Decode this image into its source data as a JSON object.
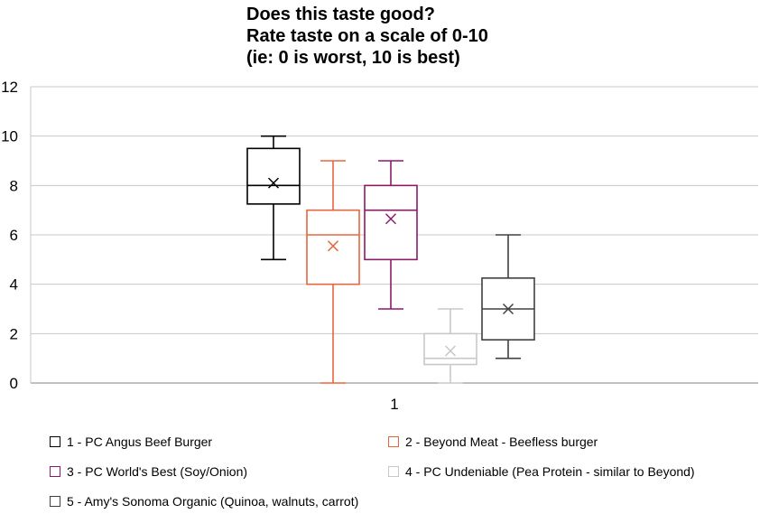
{
  "chart_data": {
    "type": "boxplot",
    "title_lines": [
      "Does this taste good?",
      "Rate taste on a scale of 0-10",
      "(ie: 0 is worst, 10 is best)"
    ],
    "category_label": "1",
    "ylim": [
      0,
      12
    ],
    "yticks": [
      "0",
      "2",
      "4",
      "6",
      "8",
      "10",
      "12"
    ],
    "grid": true,
    "series": [
      {
        "name": "1 - PC Angus Beef Burger",
        "color": "#000000",
        "min": 5,
        "q1": 7.25,
        "median": 8,
        "q3": 9.5,
        "max": 10,
        "mean": 8.1
      },
      {
        "name": "2 - Beyond Meat - Beefless burger",
        "color": "#e8663d",
        "min": 0,
        "q1": 4,
        "median": 6,
        "q3": 7,
        "max": 9,
        "mean": 5.55
      },
      {
        "name": "3 - PC World's Best (Soy/Onion)",
        "color": "#8b1a6b",
        "min": 3,
        "q1": 5,
        "median": 7,
        "q3": 8,
        "max": 9,
        "mean": 6.65
      },
      {
        "name": "4 - PC Undeniable (Pea Protein - similar to Beyond)",
        "color": "#c8c8c8",
        "min": 0,
        "q1": 0.75,
        "median": 1,
        "q3": 2,
        "max": 3,
        "mean": 1.3
      },
      {
        "name": "5 - Amy's Sonoma Organic (Quinoa, walnuts, carrot)",
        "color": "#404040",
        "min": 1,
        "q1": 1.75,
        "median": 3,
        "q3": 4.25,
        "max": 6,
        "mean": 3.0
      }
    ]
  }
}
